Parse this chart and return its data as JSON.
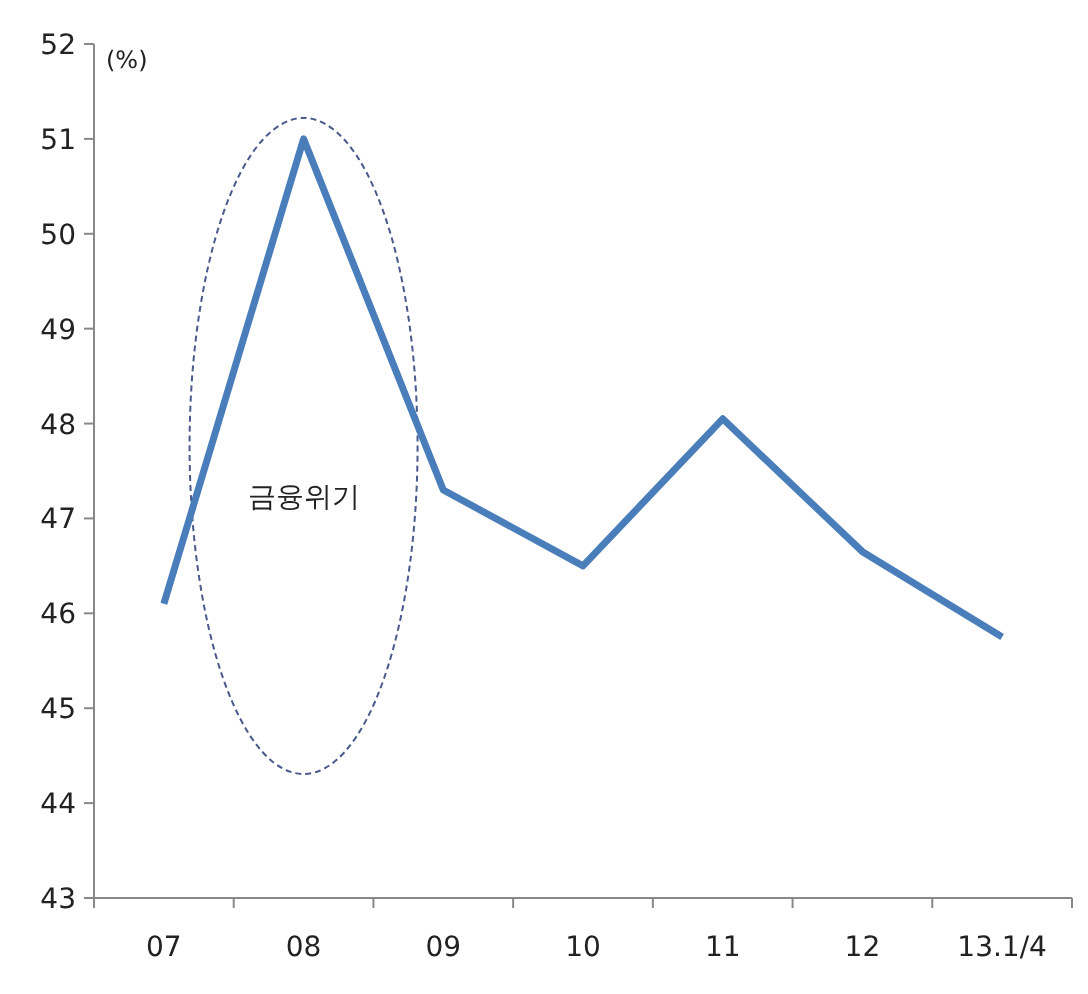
{
  "chart_data": {
    "type": "line",
    "ylabel": "(%)",
    "categories": [
      "07",
      "08",
      "09",
      "10",
      "11",
      "12",
      "13.1/4"
    ],
    "series": [
      {
        "color": "#4a7ebb",
        "values": [
          46.1,
          51.0,
          47.3,
          46.5,
          48.05,
          46.65,
          45.75
        ]
      }
    ],
    "ylim": [
      43,
      52
    ],
    "yticks": [
      43,
      44,
      45,
      46,
      47,
      48,
      49,
      50,
      51,
      52
    ],
    "annotations": [
      "금융위기"
    ],
    "marker": "none",
    "line_style": "solid"
  }
}
